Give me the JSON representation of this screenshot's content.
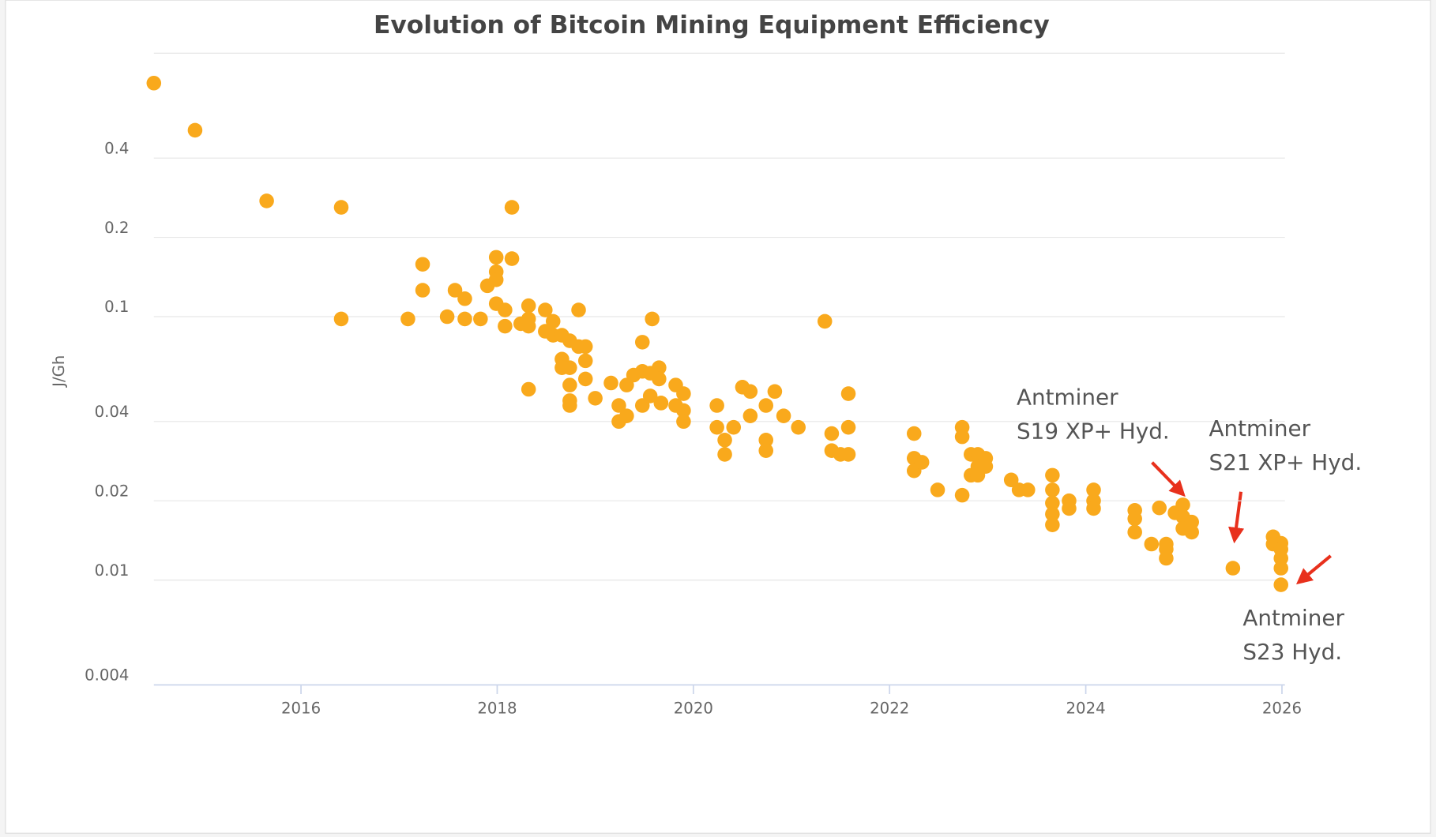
{
  "chart_data": {
    "type": "scatter",
    "title": "Evolution of Bitcoin Mining Equipment Efficiency",
    "y_label": "J/Gh",
    "y_scale": "log",
    "grid": true,
    "color": "#f9a91c",
    "xlim": [
      2014.5,
      2026.03
    ],
    "xticks": [
      2016,
      2018,
      2020,
      2022,
      2024,
      2026
    ],
    "ylim": [
      0.004,
      1
    ],
    "yticks": [
      0.004,
      0.01,
      0.02,
      0.04,
      0.1,
      0.2,
      0.4
    ],
    "annotations": [
      {
        "lines": [
          "Antminer",
          "S19 XP+ Hyd."
        ]
      },
      {
        "lines": [
          "Antminer",
          "S21 XP+ Hyd."
        ]
      },
      {
        "lines": [
          "Antminer",
          "S23 Hyd."
        ]
      }
    ],
    "x": [
      2014.5,
      2014.92,
      2015.65,
      2016.41,
      2016.41,
      2017.09,
      2017.24,
      2017.24,
      2017.49,
      2017.57,
      2017.67,
      2017.67,
      2017.83,
      2017.9,
      2017.99,
      2017.99,
      2017.99,
      2017.99,
      2018.08,
      2018.08,
      2018.15,
      2018.15,
      2018.24,
      2018.32,
      2018.32,
      2018.32,
      2018.32,
      2018.49,
      2018.49,
      2018.57,
      2018.57,
      2018.66,
      2018.66,
      2018.66,
      2018.74,
      2018.74,
      2018.74,
      2018.74,
      2018.74,
      2018.83,
      2018.83,
      2018.9,
      2018.9,
      2018.9,
      2019.0,
      2019.16,
      2019.24,
      2019.24,
      2019.32,
      2019.32,
      2019.39,
      2019.48,
      2019.48,
      2019.48,
      2019.56,
      2019.56,
      2019.58,
      2019.65,
      2019.65,
      2019.67,
      2019.67,
      2019.82,
      2019.82,
      2019.9,
      2019.9,
      2019.9,
      2020.24,
      2020.24,
      2020.32,
      2020.32,
      2020.41,
      2020.5,
      2020.58,
      2020.58,
      2020.74,
      2020.74,
      2020.74,
      2020.83,
      2020.92,
      2021.07,
      2021.34,
      2021.41,
      2021.41,
      2021.5,
      2021.58,
      2021.58,
      2021.58,
      2022.25,
      2022.25,
      2022.25,
      2022.33,
      2022.49,
      2022.74,
      2022.74,
      2022.74,
      2022.83,
      2022.83,
      2022.9,
      2022.9,
      2022.9,
      2022.98,
      2022.98,
      2023.24,
      2023.32,
      2023.41,
      2023.66,
      2023.66,
      2023.66,
      2023.66,
      2023.66,
      2023.83,
      2023.83,
      2024.08,
      2024.08,
      2024.08,
      2024.5,
      2024.5,
      2024.5,
      2024.67,
      2024.75,
      2024.82,
      2024.82,
      2024.82,
      2024.91,
      2024.99,
      2024.99,
      2024.99,
      2025.08,
      2025.08,
      2025.5,
      2025.91,
      2025.91,
      2025.99,
      2025.99,
      2025.99,
      2025.99,
      2025.99
    ],
    "values": [
      0.77,
      0.51,
      0.275,
      0.26,
      0.098,
      0.098,
      0.158,
      0.126,
      0.1,
      0.126,
      0.117,
      0.098,
      0.098,
      0.131,
      0.168,
      0.148,
      0.138,
      0.112,
      0.106,
      0.092,
      0.26,
      0.166,
      0.094,
      0.11,
      0.098,
      0.092,
      0.053,
      0.106,
      0.088,
      0.096,
      0.085,
      0.085,
      0.069,
      0.064,
      0.081,
      0.064,
      0.055,
      0.048,
      0.046,
      0.106,
      0.077,
      0.077,
      0.068,
      0.058,
      0.049,
      0.056,
      0.046,
      0.04,
      0.055,
      0.042,
      0.06,
      0.08,
      0.062,
      0.046,
      0.061,
      0.05,
      0.098,
      0.064,
      0.058,
      0.047,
      0.047,
      0.055,
      0.046,
      0.051,
      0.044,
      0.04,
      0.046,
      0.038,
      0.034,
      0.03,
      0.038,
      0.054,
      0.052,
      0.042,
      0.046,
      0.034,
      0.031,
      0.052,
      0.042,
      0.038,
      0.096,
      0.036,
      0.031,
      0.03,
      0.051,
      0.038,
      0.03,
      0.036,
      0.029,
      0.026,
      0.028,
      0.022,
      0.038,
      0.035,
      0.021,
      0.03,
      0.025,
      0.03,
      0.027,
      0.025,
      0.029,
      0.027,
      0.024,
      0.022,
      0.022,
      0.025,
      0.022,
      0.0196,
      0.0178,
      0.0162,
      0.02,
      0.0187,
      0.022,
      0.02,
      0.0187,
      0.0184,
      0.0171,
      0.0152,
      0.0137,
      0.0188,
      0.0137,
      0.0131,
      0.0121,
      0.018,
      0.0193,
      0.0174,
      0.0157,
      0.0166,
      0.0152,
      0.0111,
      0.0146,
      0.0137,
      0.0138,
      0.0131,
      0.0121,
      0.0111,
      0.0096
    ]
  }
}
